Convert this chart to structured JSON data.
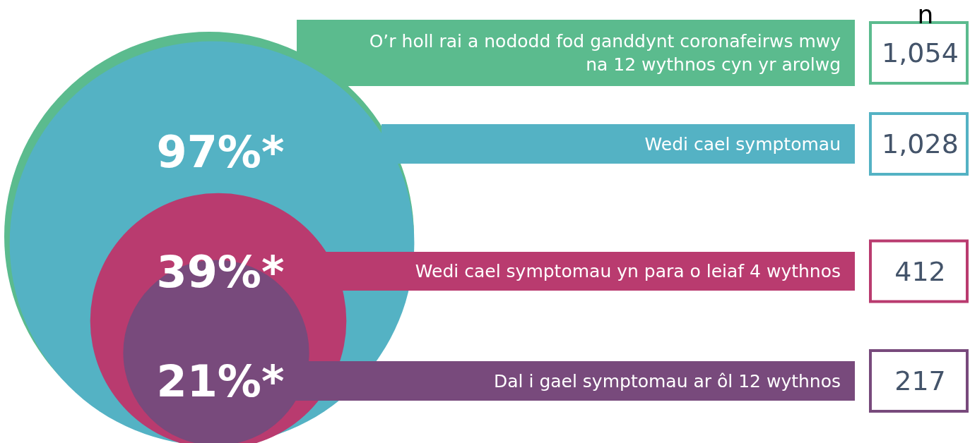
{
  "chart_data": {
    "type": "other",
    "legend_title": "n",
    "categories": [
      "O’r holl rai a nododd fod ganddynt coronafeirws mwy na 12 wythnos cyn yr arolwg",
      "Wedi cael symptomau",
      "Wedi cael symptomau yn para o leiaf 4 wythnos",
      "Dal i gael symptomau ar ôl 12 wythnos"
    ],
    "values": [
      1054,
      1028,
      412,
      217
    ],
    "value_labels": [
      "1,054",
      "1,028",
      "412",
      "217"
    ],
    "colors": [
      "#5bbb8e",
      "#54b2c4",
      "#b93b6f",
      "#784a7c"
    ],
    "annotations": [
      "97%*",
      "39%*",
      "21%*"
    ]
  }
}
